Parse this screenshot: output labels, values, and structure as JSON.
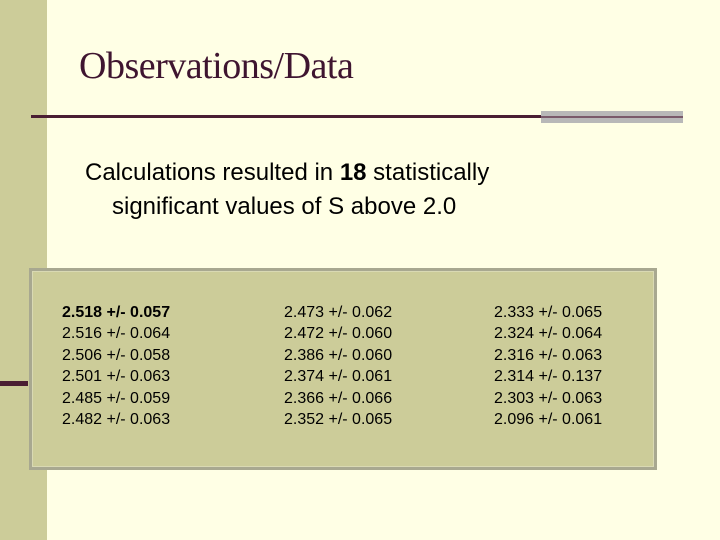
{
  "title": "Observations/Data",
  "summary": {
    "prefix": "Calculations resulted in ",
    "count": "18",
    "suffix": " statistically",
    "line2": "significant values of S above 2.0"
  },
  "columns": [
    [
      "2.518 +/- 0.057",
      "2.516 +/- 0.064",
      "2.506 +/- 0.058",
      "2.501 +/- 0.063",
      "2.485 +/- 0.059",
      "2.482 +/- 0.063"
    ],
    [
      "2.473 +/- 0.062",
      "2.472 +/- 0.060",
      "2.386 +/- 0.060",
      "2.374 +/- 0.061",
      "2.366 +/- 0.066",
      "2.352 +/- 0.065"
    ],
    [
      "2.333 +/- 0.065",
      "2.324 +/- 0.064",
      "2.316 +/- 0.063",
      "2.314 +/- 0.137",
      "2.303 +/- 0.063",
      "2.096 +/- 0.061"
    ]
  ],
  "colors": {
    "background": "#FFFFE5",
    "band": "#CCCC99",
    "accent": "#4A1E33",
    "title": "#3F1530"
  }
}
